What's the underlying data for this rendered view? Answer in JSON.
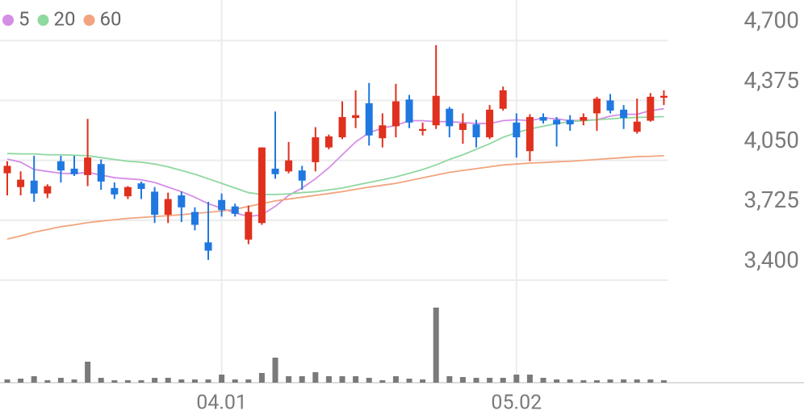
{
  "chart_data": [
    {
      "type": "candlestick",
      "categories": [
        null,
        null,
        null,
        null,
        null,
        null,
        null,
        null,
        null,
        null,
        null,
        null,
        null,
        null,
        null,
        null,
        "04.01",
        null,
        null,
        null,
        null,
        null,
        null,
        null,
        null,
        null,
        null,
        null,
        null,
        null,
        null,
        null,
        null,
        null,
        null,
        null,
        null,
        null,
        "05.02",
        null,
        null,
        null,
        null,
        null,
        null,
        null,
        null,
        null,
        null,
        null
      ],
      "open": [
        3980,
        3905,
        3940,
        3870,
        4045,
        4005,
        3970,
        4030,
        3900,
        3855,
        3925,
        3880,
        3755,
        3860,
        3770,
        3605,
        3835,
        3800,
        3620,
        3710,
        4005,
        3990,
        3995,
        4040,
        4120,
        4175,
        4280,
        4360,
        4170,
        4235,
        4380,
        4210,
        4240,
        4330,
        4215,
        4245,
        4175,
        4330,
        4255,
        4100,
        4285,
        4270,
        4270,
        4265,
        4305,
        4375,
        4325,
        4205,
        4265,
        4390
      ],
      "high": [
        4045,
        3990,
        4075,
        3920,
        4075,
        4075,
        4275,
        4055,
        3930,
        3910,
        3935,
        3905,
        3875,
        3880,
        3795,
        3825,
        3870,
        3815,
        3805,
        4120,
        4315,
        4150,
        4020,
        4230,
        4190,
        4370,
        4430,
        4470,
        4305,
        4465,
        4405,
        4255,
        4675,
        4340,
        4305,
        4270,
        4350,
        4450,
        4305,
        4300,
        4305,
        4285,
        4295,
        4305,
        4395,
        4410,
        4350,
        4385,
        4415,
        4430
      ],
      "low": [
        3860,
        3860,
        3825,
        3845,
        3930,
        3965,
        3910,
        3890,
        3840,
        3840,
        3840,
        3710,
        3710,
        3715,
        3670,
        3510,
        3745,
        3745,
        3595,
        3700,
        3950,
        3980,
        3890,
        3990,
        4110,
        4165,
        4225,
        4130,
        4120,
        4175,
        4225,
        4185,
        4220,
        4175,
        4140,
        4120,
        4165,
        4320,
        4065,
        4045,
        4250,
        4125,
        4210,
        4240,
        4210,
        4305,
        4220,
        4195,
        4260,
        4350
      ],
      "close": [
        4020,
        3945,
        3870,
        3910,
        3995,
        3975,
        4065,
        3935,
        3865,
        3905,
        3895,
        3755,
        3840,
        3795,
        3700,
        3560,
        3780,
        3760,
        3770,
        4120,
        3975,
        4050,
        3940,
        4175,
        4180,
        4285,
        4295,
        4185,
        4240,
        4370,
        4255,
        4220,
        4400,
        4235,
        4250,
        4175,
        4325,
        4430,
        4175,
        4285,
        4265,
        4245,
        4245,
        4285,
        4385,
        4320,
        4280,
        4260,
        4395,
        4400
      ],
      "up_color": "#e0301e",
      "down_color": "#1f78e0",
      "series": [
        {
          "name": "5",
          "color": "#d48ee6",
          "values": [
            4057,
            4040,
            4000,
            3990,
            3980,
            3978,
            3985,
            3970,
            3956,
            3950,
            3945,
            3930,
            3905,
            3880,
            3850,
            3815,
            3790,
            3765,
            3745,
            3755,
            3800,
            3860,
            3900,
            3950,
            4010,
            4080,
            4150,
            4200,
            4225,
            4240,
            4265,
            4265,
            4260,
            4260,
            4255,
            4250,
            4250,
            4265,
            4270,
            4265,
            4280,
            4275,
            4265,
            4268,
            4270,
            4290,
            4300,
            4300,
            4320,
            4330
          ]
        },
        {
          "name": "20",
          "color": "#8fd8a0",
          "values": [
            4087,
            4085,
            4085,
            4080,
            4080,
            4078,
            4075,
            4065,
            4055,
            4045,
            4040,
            4030,
            4015,
            3995,
            3975,
            3950,
            3925,
            3900,
            3875,
            3865,
            3865,
            3868,
            3875,
            3880,
            3890,
            3900,
            3915,
            3930,
            3945,
            3960,
            3980,
            4000,
            4025,
            4055,
            4080,
            4110,
            4140,
            4175,
            4200,
            4220,
            4235,
            4250,
            4260,
            4265,
            4270,
            4275,
            4280,
            4283,
            4285,
            4287
          ]
        },
        {
          "name": "60",
          "color": "#f2a47e",
          "values": [
            3623,
            3640,
            3660,
            3675,
            3690,
            3700,
            3712,
            3720,
            3728,
            3735,
            3740,
            3745,
            3750,
            3755,
            3762,
            3768,
            3775,
            3785,
            3800,
            3815,
            3830,
            3840,
            3850,
            3860,
            3870,
            3880,
            3893,
            3905,
            3915,
            3925,
            3940,
            3955,
            3970,
            3985,
            3995,
            4005,
            4015,
            4025,
            4030,
            4035,
            4038,
            4042,
            4045,
            4050,
            4055,
            4060,
            4065,
            4070,
            4072,
            4075
          ]
        }
      ],
      "ylim": [
        3400,
        4920
      ],
      "yticks": [
        {
          "value": 3400,
          "label": "3,400"
        },
        {
          "value": 3725,
          "label": "3,725"
        },
        {
          "value": 4050,
          "label": "4,050"
        },
        {
          "value": 4375,
          "label": "4,375"
        },
        {
          "value": 4700,
          "label": "4,700"
        }
      ],
      "grid": true
    },
    {
      "type": "bar",
      "color": "#7a7a7a",
      "values": [
        4,
        5,
        8,
        3,
        6,
        4,
        26,
        6,
        3,
        3,
        3,
        6,
        6,
        4,
        4,
        4,
        10,
        4,
        4,
        12,
        31,
        8,
        8,
        13,
        8,
        8,
        8,
        6,
        3,
        8,
        5,
        4,
        93,
        8,
        7,
        6,
        6,
        6,
        10,
        10,
        6,
        4,
        4,
        3,
        3,
        4,
        4,
        4,
        4,
        3
      ],
      "ylim": [
        0,
        100
      ]
    }
  ]
}
